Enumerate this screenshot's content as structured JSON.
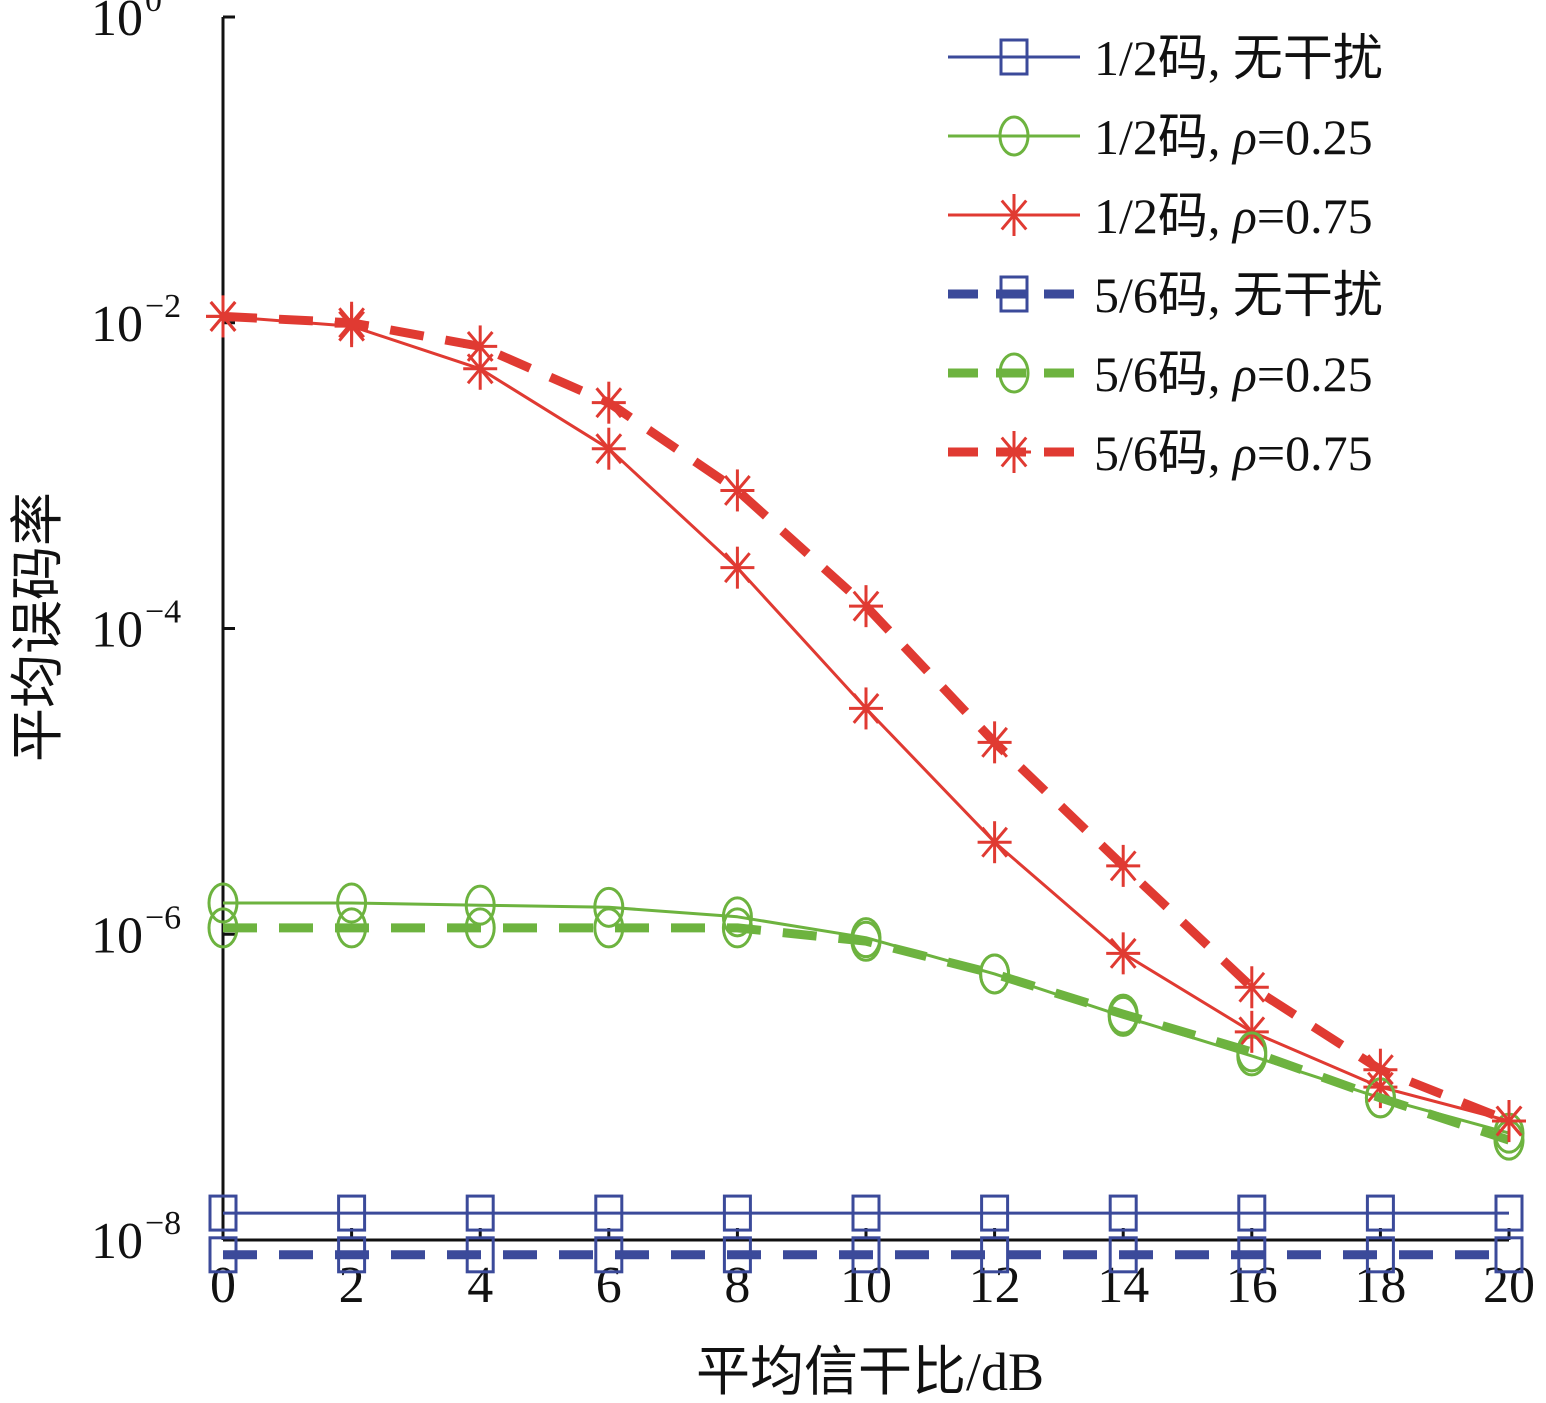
{
  "chart_data": {
    "type": "line",
    "xlabel": "平均信干比/dB",
    "ylabel": "平均误码率",
    "x": [
      0,
      2,
      4,
      6,
      8,
      10,
      12,
      14,
      16,
      18,
      20
    ],
    "xlim": [
      0,
      20
    ],
    "ylim": [
      1e-08,
      1
    ],
    "y_scale": "log",
    "x_ticks": [
      "0",
      "2",
      "4",
      "6",
      "8",
      "10",
      "12",
      "14",
      "16",
      "18",
      "20"
    ],
    "y_ticks": [
      {
        "value": 1,
        "base": "10",
        "exp": "0"
      },
      {
        "value": 0.01,
        "base": "10",
        "exp": "−2"
      },
      {
        "value": 0.0001,
        "base": "10",
        "exp": "−4"
      },
      {
        "value": 1e-06,
        "base": "10",
        "exp": "−6"
      },
      {
        "value": 1e-08,
        "base": "10",
        "exp": "−8"
      }
    ],
    "legend_position": "top-right",
    "series": [
      {
        "name": "1/2码, 无干扰",
        "label_prefix": "1/2码, ",
        "label_italic": "",
        "label_suffix": "无干扰",
        "color": "#3b4a9a",
        "dash": "solid",
        "marker": "square",
        "values": [
          1.5e-08,
          1.5e-08,
          1.5e-08,
          1.5e-08,
          1.5e-08,
          1.5e-08,
          1.5e-08,
          1.5e-08,
          1.5e-08,
          1.5e-08,
          1.5e-08
        ]
      },
      {
        "name": "1/2码, ρ=0.25",
        "label_prefix": "1/2码, ",
        "label_italic": "ρ",
        "label_suffix": "=0.25",
        "color": "#6db33f",
        "dash": "solid",
        "marker": "circle",
        "values": [
          1.6e-06,
          1.6e-06,
          1.55e-06,
          1.5e-06,
          1.3e-06,
          9.5e-07,
          5.5e-07,
          2.9e-07,
          1.6e-07,
          8.5e-08,
          5e-08
        ]
      },
      {
        "name": "1/2码, ρ=0.75",
        "label_prefix": "1/2码, ",
        "label_italic": "ρ",
        "label_suffix": "=0.75",
        "color": "#e03a32",
        "dash": "solid",
        "marker": "star",
        "values": [
          0.011,
          0.0095,
          0.005,
          0.0015,
          0.00025,
          3e-05,
          4e-06,
          7.5e-07,
          2.3e-07,
          1e-07,
          6e-08
        ]
      },
      {
        "name": "5/6码, 无干扰",
        "label_prefix": "5/6码, ",
        "label_italic": "",
        "label_suffix": "无干扰",
        "color": "#3b4a9a",
        "dash": "dashed",
        "marker": "square",
        "values": [
          8e-09,
          8e-09,
          8e-09,
          8e-09,
          8e-09,
          8e-09,
          8e-09,
          8e-09,
          8e-09,
          8e-09,
          8e-09
        ]
      },
      {
        "name": "5/6码, ρ=0.25",
        "label_prefix": "5/6码, ",
        "label_italic": "ρ",
        "label_suffix": "=0.25",
        "color": "#6db33f",
        "dash": "dashed",
        "marker": "circle",
        "values": [
          1.1e-06,
          1.1e-06,
          1.1e-06,
          1.1e-06,
          1.1e-06,
          9e-07,
          5.5e-07,
          3e-07,
          1.7e-07,
          8.5e-08,
          4.5e-08
        ]
      },
      {
        "name": "5/6码, ρ=0.75",
        "label_prefix": "5/6码, ",
        "label_italic": "ρ",
        "label_suffix": "=0.75",
        "color": "#e03a32",
        "dash": "dashed",
        "marker": "star",
        "values": [
          0.011,
          0.01,
          0.007,
          0.003,
          0.0008,
          0.00014,
          1.8e-05,
          2.8e-06,
          4.5e-07,
          1.3e-07,
          6e-08
        ]
      }
    ]
  }
}
